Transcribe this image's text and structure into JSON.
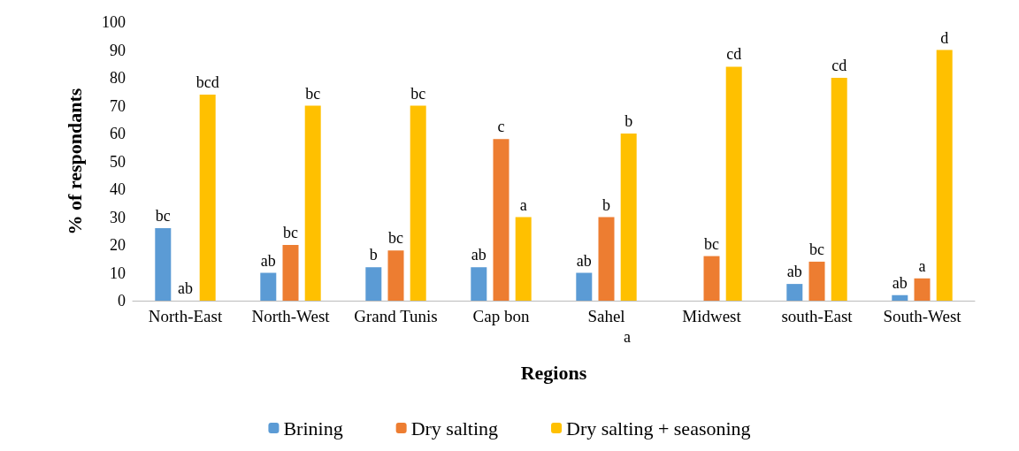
{
  "chart_data": {
    "type": "bar",
    "xlabel": "Regions",
    "ylabel": "% of respondants",
    "categories": [
      "North-East",
      "North-West",
      "Grand Tunis",
      "Cap bon",
      "Sahel",
      "Midwest",
      "south-East",
      "South-West"
    ],
    "series": [
      {
        "name": "Brining",
        "color": "#5b9bd5",
        "values": [
          26,
          10,
          12,
          12,
          10,
          0,
          6,
          2
        ],
        "value_labels": [
          "bc",
          "ab",
          "b",
          "ab",
          "ab",
          null,
          "ab",
          "ab"
        ]
      },
      {
        "name": "Dry salting",
        "color": "#ed7d31",
        "values": [
          0,
          20,
          18,
          58,
          30,
          16,
          14,
          8
        ],
        "value_labels": [
          "ab",
          "bc",
          "bc",
          "c",
          "b",
          "bc",
          "bc",
          "a"
        ]
      },
      {
        "name": "Dry salting + seasoning",
        "color": "#ffc000",
        "values": [
          74,
          70,
          70,
          30,
          60,
          84,
          80,
          90
        ],
        "value_labels": [
          "bcd",
          "bc",
          "bc",
          "a",
          "b",
          "cd",
          "cd",
          "d"
        ]
      }
    ],
    "annotations": [
      "a"
    ],
    "ylim": [
      0,
      100
    ],
    "yticks": [
      0,
      10,
      20,
      30,
      40,
      50,
      60,
      70,
      80,
      90,
      100
    ],
    "grid": false,
    "legend": "bottom"
  }
}
